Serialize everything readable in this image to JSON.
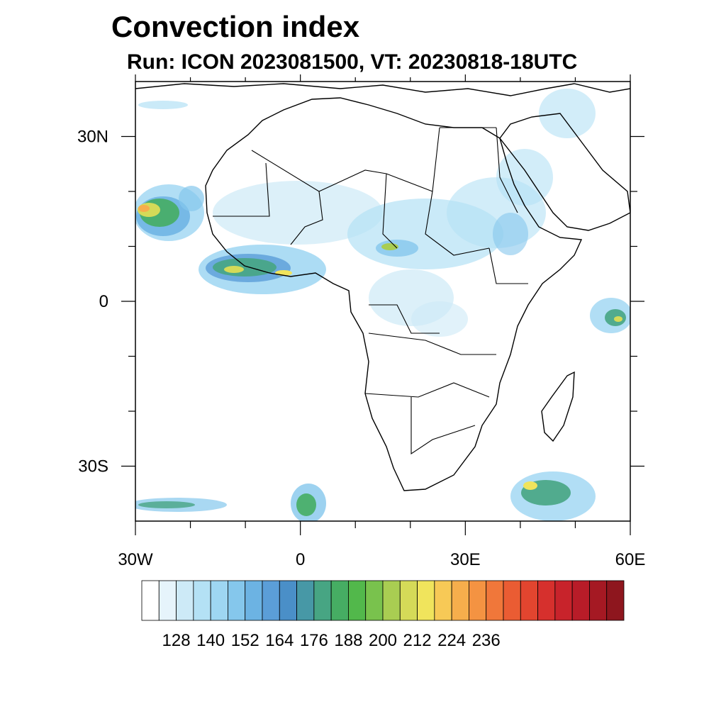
{
  "title": "Convection index",
  "subtitle": "Run: ICON 2023081500,  VT: 20230818-18UTC",
  "map": {
    "projection": "cylindrical equidistant",
    "lon_range": [
      -30,
      60
    ],
    "lat_range": [
      -40,
      40
    ],
    "x_ticks": [
      {
        "lon": -30,
        "label": "30W"
      },
      {
        "lon": 0,
        "label": "0"
      },
      {
        "lon": 30,
        "label": "30E"
      },
      {
        "lon": 60,
        "label": "60E"
      }
    ],
    "y_ticks": [
      {
        "lat": 30,
        "label": "30N"
      },
      {
        "lat": 0,
        "label": "0"
      },
      {
        "lat": -30,
        "label": "30S"
      }
    ],
    "minor_x_ticks": [
      -20,
      -10,
      10,
      20,
      40,
      50
    ],
    "minor_y_ticks": [
      20,
      10,
      -10,
      -20
    ]
  },
  "colorbar": {
    "labels": [
      "128",
      "140",
      "152",
      "164",
      "176",
      "188",
      "200",
      "212",
      "224",
      "236"
    ],
    "colors": [
      "#ffffff",
      "#e6f4fb",
      "#cdeaf7",
      "#b4e1f5",
      "#9ed6f2",
      "#85c7ec",
      "#6cb3e3",
      "#5b9ed8",
      "#4a8fc8",
      "#4798a6",
      "#47a583",
      "#46ad63",
      "#52b84b",
      "#79c24d",
      "#a9cd52",
      "#d5da58",
      "#f0e45c",
      "#f7c956",
      "#f6ae4c",
      "#f49342",
      "#f0773a",
      "#ea5c33",
      "#e2452f",
      "#d6302d",
      "#c8232b",
      "#b81c28",
      "#a51923",
      "#8e161e"
    ]
  }
}
